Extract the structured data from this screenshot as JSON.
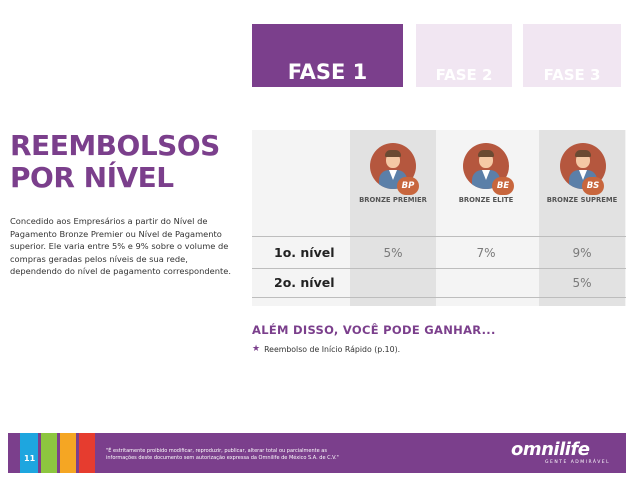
{
  "phases": [
    {
      "label": "FASE 1",
      "active": true
    },
    {
      "label": "FASE 2",
      "active": false
    },
    {
      "label": "FASE 3",
      "active": false
    }
  ],
  "heading": {
    "line1": "REEMBOLSOS",
    "line2": "POR NÍVEL"
  },
  "description": "Concedido aos Empresários a partir do Nível de Pagamento Bronze Premier ou Nível de Pagamento superior. Ele varia entre 5% e 9% sobre o volume de compras geradas pelos níveis de sua rede, dependendo do nível de pagamento correspondente.",
  "levels": [
    {
      "badge": "BP",
      "name": "BRONZE PREMIER",
      "avatar_icon": "business-person-icon"
    },
    {
      "badge": "BE",
      "name": "BRONZE ELITE",
      "avatar_icon": "business-person-icon"
    },
    {
      "badge": "BS",
      "name": "BRONZE SUPREME",
      "avatar_icon": "business-person-icon"
    }
  ],
  "rows": [
    {
      "label": "1o. nível",
      "values": [
        "5%",
        "7%",
        "9%"
      ]
    },
    {
      "label": "2o. nível",
      "values": [
        "",
        "",
        "5%"
      ]
    }
  ],
  "bonus": {
    "title": "ALÉM DISSO, VOCÊ PODE GANHAR...",
    "item": "Reembolso de Início Rápido (p.10).",
    "icon": "star-icon"
  },
  "footer": {
    "page": "11",
    "disclaimer": "\"É estritamente proibido modificar, reproduzir, publicar, alterar total ou parcialmente as informações deste documento sem autorização expressa da Omnilife de México S.A. de C.V.\"",
    "brand": "omnilife",
    "brand_sub": "GENTE ADMIRÁVEL"
  },
  "colors": {
    "primary": "#7b3f8c",
    "phase_inactive": "#f1e6f2",
    "badge": "#c8663d",
    "avatar_bg": "#b5573e",
    "stripes": [
      "#1ea6df",
      "#8dc63f",
      "#f5a623",
      "#e63c2f"
    ]
  }
}
